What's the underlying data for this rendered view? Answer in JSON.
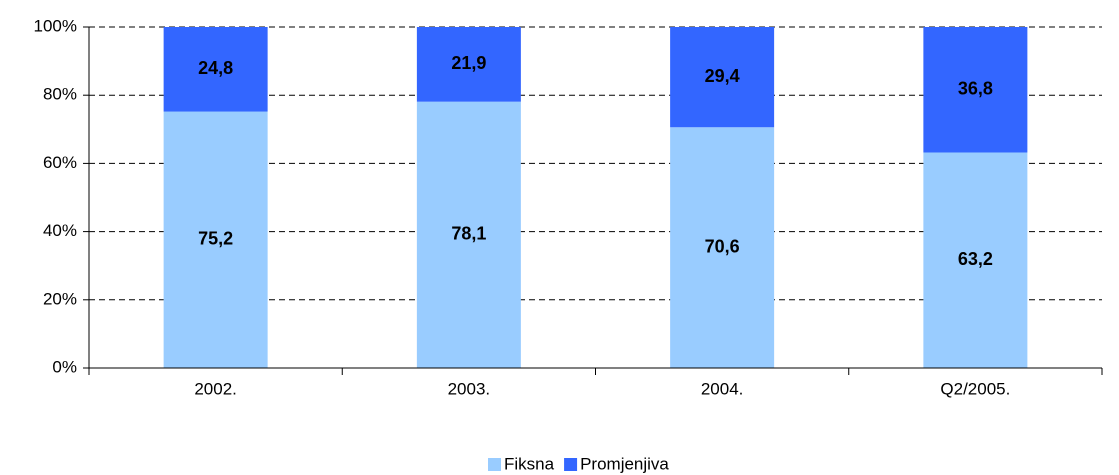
{
  "chart_data": {
    "type": "stacked_bar",
    "categories": [
      "2002.",
      "2003.",
      "2004.",
      "Q2/2005."
    ],
    "series": [
      {
        "name": "Fiksna",
        "color": "#99ccff",
        "values": [
          75.2,
          78.1,
          70.6,
          63.2
        ],
        "value_labels": [
          "75,2",
          "78,1",
          "70,6",
          "63,2"
        ]
      },
      {
        "name": "Promjenjiva",
        "color": "#3366ff",
        "values": [
          24.8,
          21.9,
          29.4,
          36.8
        ],
        "value_labels": [
          "24,8",
          "21,9",
          "29,4",
          "36,8"
        ]
      }
    ],
    "ylim": [
      0,
      100
    ],
    "yticks": [
      {
        "value": 0,
        "label": "0%"
      },
      {
        "value": 20,
        "label": "20%"
      },
      {
        "value": 40,
        "label": "40%"
      },
      {
        "value": 60,
        "label": "60%"
      },
      {
        "value": 80,
        "label": "80%"
      },
      {
        "value": 100,
        "label": "100%"
      }
    ],
    "grid": true,
    "legend": "bottom"
  }
}
